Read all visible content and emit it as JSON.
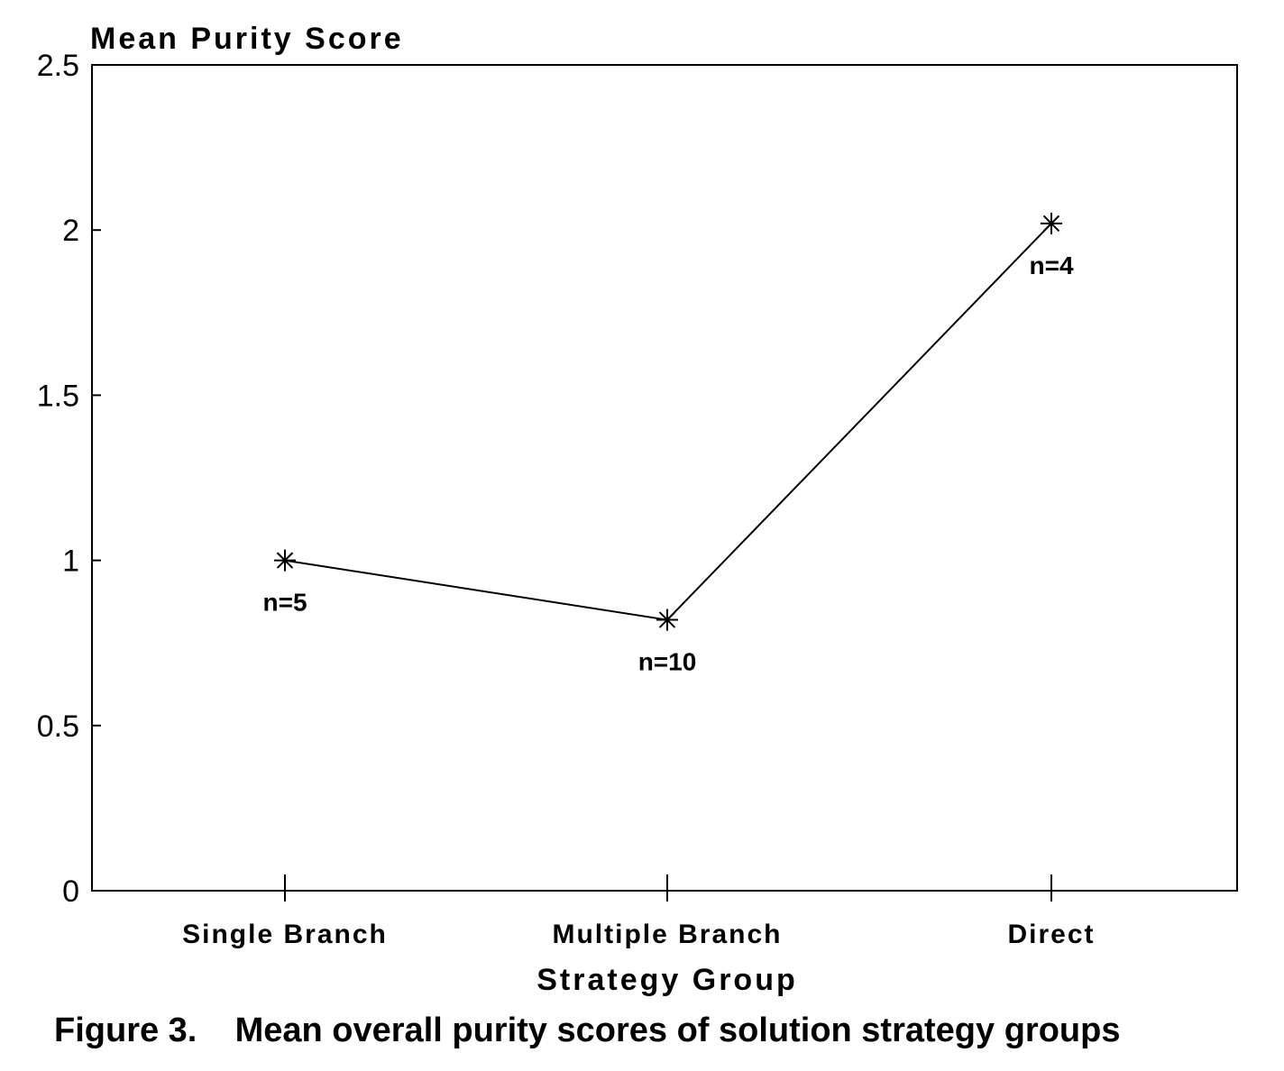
{
  "chart_data": {
    "type": "line",
    "ylabel": "Mean Purity Score",
    "xlabel": "Strategy Group",
    "categories": [
      "Single Branch",
      "Multiple Branch",
      "Direct"
    ],
    "values": [
      1.0,
      0.82,
      2.02
    ],
    "point_labels": [
      "n=5",
      "n=10",
      "n=4"
    ],
    "ylim": [
      0,
      2.5
    ],
    "yticks": [
      "0",
      "0.5",
      "1",
      "1.5",
      "2",
      "2.5"
    ],
    "marker": "asterisk",
    "grid": false,
    "line_color": "#000000"
  },
  "caption": "Figure 3.    Mean overall purity scores of solution strategy groups"
}
